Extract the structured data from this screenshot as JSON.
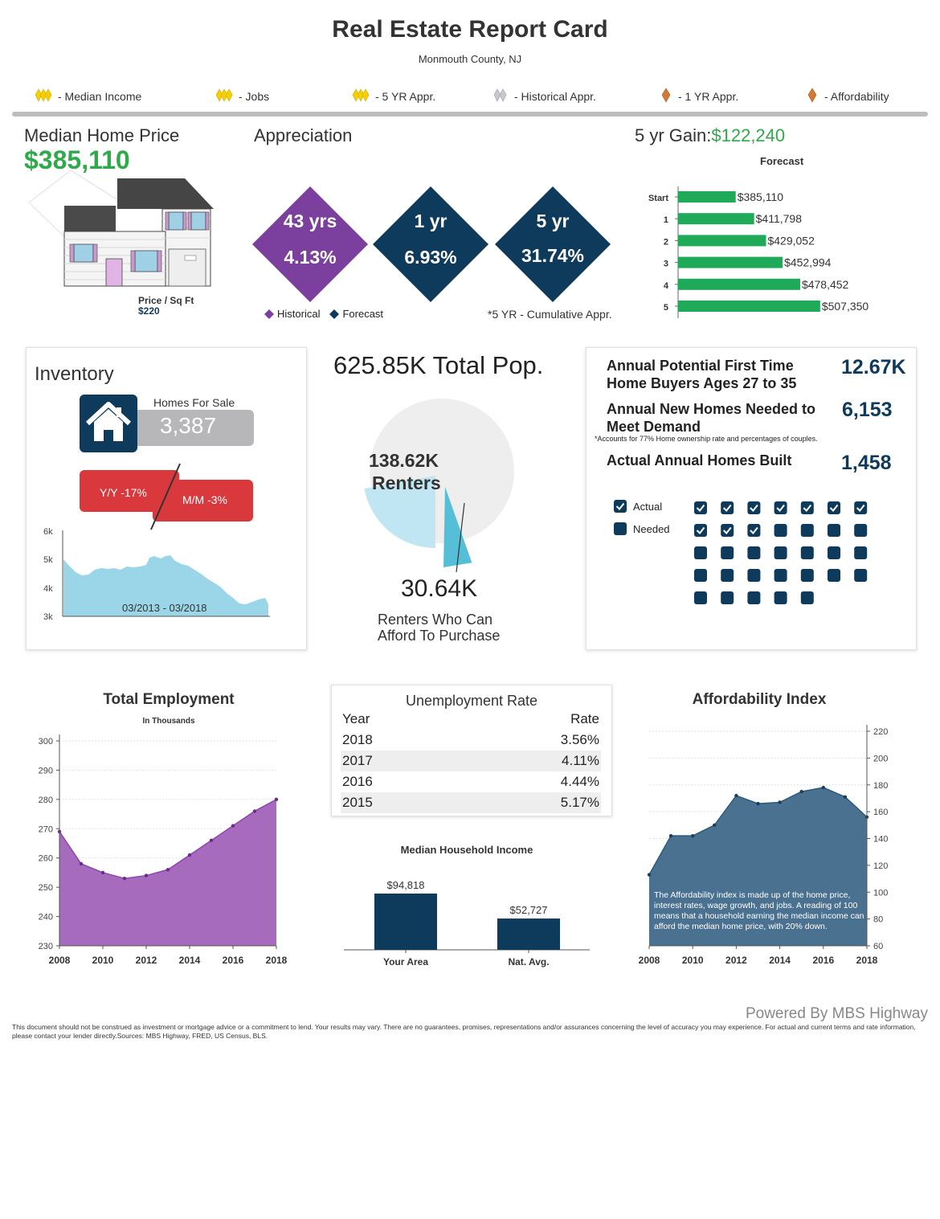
{
  "header": {
    "title": "Real Estate Report Card",
    "location": "Monmouth County, NJ"
  },
  "legend": [
    {
      "label": "- Median Income",
      "rating": "gold"
    },
    {
      "label": "- Jobs",
      "rating": "gold"
    },
    {
      "label": "- 5 YR Appr.",
      "rating": "gold"
    },
    {
      "label": "- Historical Appr.",
      "rating": "silver"
    },
    {
      "label": "- 1 YR Appr.",
      "rating": "bronze"
    },
    {
      "label": "- Affordability",
      "rating": "bronze"
    }
  ],
  "median_price": {
    "heading": "Median Home Price",
    "value": "$385,110",
    "price_sqft_label": "Price / Sq Ft",
    "price_sqft_value": "$220"
  },
  "appreciation": {
    "heading": "Appreciation",
    "diamonds": [
      {
        "period": "43 yrs",
        "value": "4.13%",
        "kind": "historical"
      },
      {
        "period": "1 yr",
        "value": "6.93%",
        "kind": "forecast"
      },
      {
        "period": "5 yr",
        "value": "31.74%",
        "kind": "forecast"
      }
    ],
    "legend_historical": "Historical",
    "legend_forecast": "Forecast",
    "note": "*5 YR - Cumulative Appr."
  },
  "gain": {
    "label": "5 yr Gain:",
    "value": "$122,240"
  },
  "forecast_chart": {
    "title": "Forecast",
    "rows": [
      {
        "label": "Start",
        "value": 385110,
        "text": "$385,110"
      },
      {
        "label": "1",
        "value": 411798,
        "text": "$411,798"
      },
      {
        "label": "2",
        "value": 429052,
        "text": "$429,052"
      },
      {
        "label": "3",
        "value": 452994,
        "text": "$452,994"
      },
      {
        "label": "4",
        "value": 478452,
        "text": "$478,452"
      },
      {
        "label": "5",
        "value": 507350,
        "text": "$507,350"
      }
    ]
  },
  "inventory": {
    "heading": "Inventory",
    "homes_for_sale_label": "Homes For Sale",
    "homes_for_sale_value": "3,387",
    "yy": "Y/Y -17%",
    "mm": "M/M -3%",
    "chart_range_label": "03/2013 - 03/2018",
    "y_ticks": [
      "6k",
      "5k",
      "4k",
      "3k"
    ]
  },
  "population": {
    "total": "625.85K Total Pop.",
    "renters_value": "138.62K",
    "renters_label": "Renters",
    "afford_value": "30.64K",
    "afford_label_1": "Renters Who Can",
    "afford_label_2": "Afford To Purchase",
    "total_raw": 625.85,
    "renters_raw": 138.62,
    "afford_raw": 30.64
  },
  "buyers": {
    "first_time_label_1": "Annual Potential First Time",
    "first_time_label_2": "Home Buyers Ages 27 to 35",
    "first_time_value": "12.67K",
    "needed_label_1": "Annual New Homes Needed to",
    "needed_label_2": "Meet Demand",
    "needed_value": "6,153",
    "footnote": "*Accounts for 77% Home ownership rate and percentages of couples.",
    "built_label": "Actual Annual Homes Built",
    "built_value": "1,458",
    "legend_actual": "Actual",
    "legend_needed": "Needed",
    "grid_total": 33,
    "grid_checked": 10
  },
  "employment": {
    "title": "Total Employment",
    "subtitle": "In Thousands",
    "chart_data": {
      "type": "area",
      "x": [
        2008,
        2009,
        2010,
        2011,
        2012,
        2013,
        2014,
        2015,
        2016,
        2017,
        2018
      ],
      "values": [
        269,
        258,
        255,
        253,
        254,
        256,
        261,
        266,
        271,
        276,
        280
      ],
      "ylim": [
        230,
        300
      ],
      "y_ticks": [
        300,
        290,
        280,
        270,
        260,
        250,
        240,
        230
      ],
      "x_ticks": [
        2008,
        2010,
        2012,
        2014,
        2016,
        2018
      ],
      "color": "#9b59b6"
    }
  },
  "unemployment": {
    "title": "Unemployment Rate",
    "col_year": "Year",
    "col_rate": "Rate",
    "rows": [
      {
        "year": "2018",
        "rate": "3.56%"
      },
      {
        "year": "2017",
        "rate": "4.11%"
      },
      {
        "year": "2016",
        "rate": "4.44%"
      },
      {
        "year": "2015",
        "rate": "5.17%"
      }
    ]
  },
  "income": {
    "title": "Median Household Income",
    "chart_data": {
      "type": "bar",
      "categories": [
        "Your Area",
        "Nat. Avg."
      ],
      "values": [
        94818,
        52727
      ],
      "labels": [
        "$94,818",
        "$52,727"
      ],
      "color": "#0e3a5c"
    }
  },
  "affordability": {
    "title": "Affordability Index",
    "note": "The Affordability index is made up of the home price, interest rates, wage growth, and jobs. A reading of 100 means that a household earning the median income can afford the median home price, with 20% down.",
    "chart_data": {
      "type": "area",
      "x": [
        2008,
        2009,
        2010,
        2011,
        2012,
        2013,
        2014,
        2015,
        2016,
        2017,
        2018
      ],
      "values": [
        113,
        142,
        142,
        150,
        172,
        166,
        167,
        175,
        178,
        171,
        156
      ],
      "ylim": [
        60,
        220
      ],
      "y_ticks": [
        220,
        200,
        180,
        160,
        140,
        120,
        100,
        80,
        60
      ],
      "x_ticks": [
        2008,
        2010,
        2012,
        2014,
        2016,
        2018
      ],
      "color": "#2b5a7c"
    }
  },
  "footer": {
    "powered": "Powered By MBS Highway",
    "disclaimer": "This document should not be construed as investment or mortgage advice or a commitment to lend. Your results may vary. There are no guarantees, promises, representations and/or assurances concerning the level of accuracy you may experience. For actual and current terms and rate information, please contact your lender directly.Sources: MBS Highway, FRED, US Census, BLS."
  },
  "colors": {
    "green": "#2eaa4a",
    "purple": "#7b3f9e",
    "navy": "#0e3a5c",
    "red": "#d9393c",
    "gold": "#f5d000",
    "silver": "#b8b8c0",
    "bronze": "#d07a34"
  }
}
